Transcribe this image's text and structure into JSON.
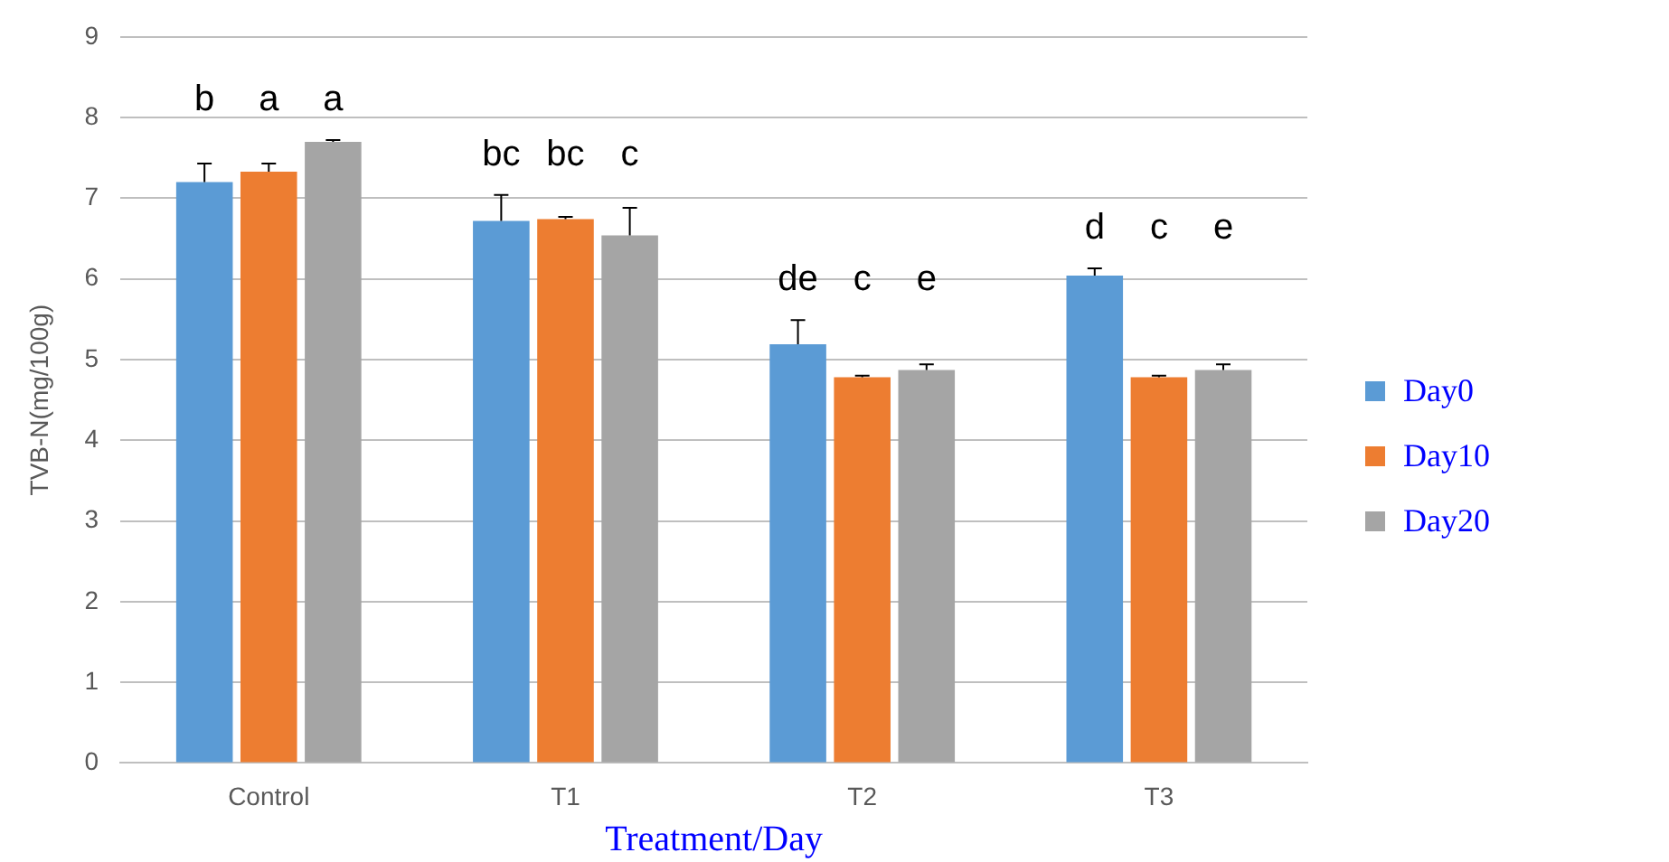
{
  "chart_data": {
    "type": "bar",
    "xlabel": "Treatment/Day",
    "ylabel": "TVB-N(mg/100g)",
    "categories": [
      "Control",
      "T1",
      "T2",
      "T3"
    ],
    "series": [
      {
        "name": "Day0",
        "color": "#5b9bd5",
        "values": [
          7.2,
          6.72,
          5.19,
          6.04
        ],
        "errors": [
          0.23,
          0.32,
          0.3,
          0.09
        ]
      },
      {
        "name": "Day10",
        "color": "#ed7d31",
        "values": [
          7.33,
          6.74,
          4.78,
          4.78
        ],
        "errors": [
          0.1,
          0.03,
          0.02,
          0.02
        ]
      },
      {
        "name": "Day20",
        "color": "#a5a5a5",
        "values": [
          7.7,
          6.54,
          4.87,
          4.87
        ],
        "errors": [
          0.02,
          0.34,
          0.07,
          0.07
        ]
      }
    ],
    "ylim": [
      0,
      9
    ],
    "yticks": [
      0,
      1,
      2,
      3,
      4,
      5,
      6,
      7,
      8,
      9
    ],
    "grid": "y",
    "legend": "right",
    "annotations": [
      "b",
      "a",
      "a",
      "bc",
      "bc",
      "c",
      "de",
      "c",
      "e",
      "d",
      "c",
      "e"
    ]
  }
}
